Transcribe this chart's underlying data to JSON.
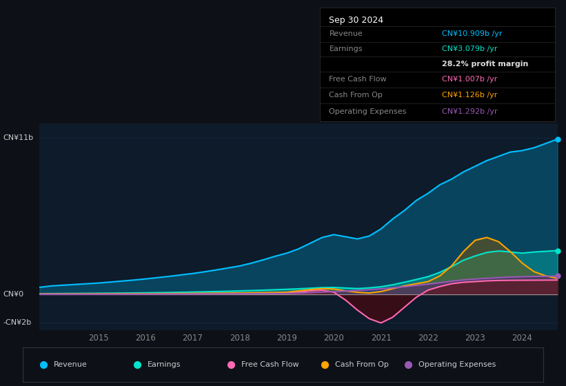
{
  "bg_color": "#0d1117",
  "plot_bg_color": "#0d1b2a",
  "grid_color": "#1e3050",
  "ylim_min": -2500000000,
  "ylim_max": 12000000000,
  "legend": [
    {
      "label": "Revenue",
      "color": "#00bfff"
    },
    {
      "label": "Earnings",
      "color": "#00e5cc"
    },
    {
      "label": "Free Cash Flow",
      "color": "#ff69b4"
    },
    {
      "label": "Cash From Op",
      "color": "#ffa500"
    },
    {
      "label": "Operating Expenses",
      "color": "#9b59b6"
    }
  ],
  "years": [
    2013.75,
    2014.0,
    2014.25,
    2014.5,
    2014.75,
    2015.0,
    2015.25,
    2015.5,
    2015.75,
    2016.0,
    2016.25,
    2016.5,
    2016.75,
    2017.0,
    2017.25,
    2017.5,
    2017.75,
    2018.0,
    2018.25,
    2018.5,
    2018.75,
    2019.0,
    2019.25,
    2019.5,
    2019.75,
    2020.0,
    2020.25,
    2020.5,
    2020.75,
    2021.0,
    2021.25,
    2021.5,
    2021.75,
    2022.0,
    2022.25,
    2022.5,
    2022.75,
    2023.0,
    2023.25,
    2023.5,
    2023.75,
    2024.0,
    2024.25,
    2024.5,
    2024.75
  ],
  "revenue": [
    500000000,
    600000000,
    650000000,
    700000000,
    750000000,
    800000000,
    870000000,
    940000000,
    1010000000,
    1090000000,
    1180000000,
    1270000000,
    1370000000,
    1470000000,
    1590000000,
    1720000000,
    1860000000,
    2000000000,
    2200000000,
    2430000000,
    2680000000,
    2900000000,
    3200000000,
    3600000000,
    4000000000,
    4200000000,
    4050000000,
    3900000000,
    4100000000,
    4600000000,
    5300000000,
    5900000000,
    6600000000,
    7100000000,
    7700000000,
    8100000000,
    8600000000,
    9000000000,
    9400000000,
    9700000000,
    10000000000,
    10100000000,
    10300000000,
    10600000000,
    10909000000
  ],
  "earnings": [
    50000000,
    60000000,
    65000000,
    70000000,
    75000000,
    80000000,
    88000000,
    96000000,
    105000000,
    115000000,
    125000000,
    138000000,
    152000000,
    168000000,
    185000000,
    205000000,
    225000000,
    248000000,
    272000000,
    300000000,
    330000000,
    360000000,
    395000000,
    435000000,
    480000000,
    490000000,
    450000000,
    410000000,
    460000000,
    540000000,
    680000000,
    860000000,
    1050000000,
    1250000000,
    1550000000,
    1950000000,
    2400000000,
    2700000000,
    2950000000,
    3050000000,
    2980000000,
    2900000000,
    2980000000,
    3030000000,
    3079000000
  ],
  "free_cash_flow": [
    20000000,
    22000000,
    23000000,
    24000000,
    25000000,
    26000000,
    28000000,
    30000000,
    32000000,
    35000000,
    38000000,
    42000000,
    46000000,
    50000000,
    55000000,
    60000000,
    65000000,
    70000000,
    76000000,
    83000000,
    90000000,
    100000000,
    150000000,
    250000000,
    300000000,
    150000000,
    -400000000,
    -1100000000,
    -1700000000,
    -2000000000,
    -1600000000,
    -900000000,
    -200000000,
    300000000,
    550000000,
    750000000,
    850000000,
    900000000,
    950000000,
    980000000,
    990000000,
    995000000,
    1000000000,
    1003000000,
    1007000000
  ],
  "cash_from_op": [
    30000000,
    32000000,
    33000000,
    34000000,
    36000000,
    38000000,
    41000000,
    44000000,
    48000000,
    52000000,
    57000000,
    62000000,
    68000000,
    74000000,
    81000000,
    89000000,
    97000000,
    106000000,
    116000000,
    128000000,
    140000000,
    155000000,
    250000000,
    340000000,
    410000000,
    380000000,
    250000000,
    150000000,
    100000000,
    200000000,
    400000000,
    600000000,
    750000000,
    900000000,
    1300000000,
    2000000000,
    3000000000,
    3800000000,
    4000000000,
    3700000000,
    3000000000,
    2200000000,
    1600000000,
    1300000000,
    1126000000
  ],
  "op_expenses": [
    10000000,
    11000000,
    12000000,
    13000000,
    14000000,
    15000000,
    16000000,
    18000000,
    20000000,
    22000000,
    24000000,
    27000000,
    30000000,
    33000000,
    36000000,
    40000000,
    44000000,
    48000000,
    53000000,
    58000000,
    64000000,
    70000000,
    90000000,
    120000000,
    160000000,
    200000000,
    240000000,
    280000000,
    330000000,
    390000000,
    460000000,
    540000000,
    630000000,
    720000000,
    820000000,
    930000000,
    1020000000,
    1080000000,
    1130000000,
    1180000000,
    1220000000,
    1240000000,
    1260000000,
    1275000000,
    1292000000
  ]
}
